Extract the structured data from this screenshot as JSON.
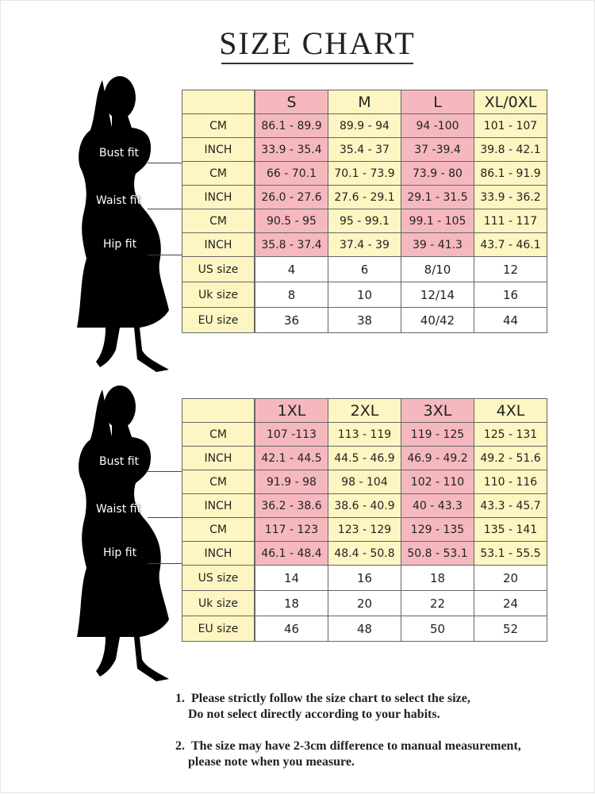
{
  "title": "SIZE CHART",
  "tables": [
    {
      "columns": [
        "S",
        "M",
        "L",
        "XL/0XL"
      ],
      "measures": [
        "Bust fit",
        "Waist fit",
        "Hip fit"
      ],
      "rows": [
        {
          "label": "CM",
          "cells": [
            "86.1 - 89.9",
            "89.9 - 94",
            "94 -100",
            "101 - 107"
          ]
        },
        {
          "label": "INCH",
          "cells": [
            "33.9 - 35.4",
            "35.4 - 37",
            "37 -39.4",
            "39.8 - 42.1"
          ]
        },
        {
          "label": "CM",
          "cells": [
            "66 - 70.1",
            "70.1 - 73.9",
            "73.9 - 80",
            "86.1 - 91.9"
          ]
        },
        {
          "label": "INCH",
          "cells": [
            "26.0 - 27.6",
            "27.6 - 29.1",
            "29.1 - 31.5",
            "33.9 - 36.2"
          ]
        },
        {
          "label": "CM",
          "cells": [
            "90.5 - 95",
            "95 - 99.1",
            "99.1 - 105",
            "111 - 117"
          ]
        },
        {
          "label": "INCH",
          "cells": [
            "35.8 - 37.4",
            "37.4 - 39",
            "39 - 41.3",
            "43.7 - 46.1"
          ]
        },
        {
          "label": "US size",
          "cells": [
            "4",
            "6",
            "8/10",
            "12"
          ]
        },
        {
          "label": "Uk size",
          "cells": [
            "8",
            "10",
            "12/14",
            "16"
          ]
        },
        {
          "label": "EU size",
          "cells": [
            "36",
            "38",
            "40/42",
            "44"
          ]
        }
      ]
    },
    {
      "columns": [
        "1XL",
        "2XL",
        "3XL",
        "4XL"
      ],
      "measures": [
        "Bust fit",
        "Waist fit",
        "Hip fit"
      ],
      "rows": [
        {
          "label": "CM",
          "cells": [
            "107 -113",
            "113 - 119",
            "119 - 125",
            "125 - 131"
          ]
        },
        {
          "label": "INCH",
          "cells": [
            "42.1 - 44.5",
            "44.5 - 46.9",
            "46.9 - 49.2",
            "49.2 - 51.6"
          ]
        },
        {
          "label": "CM",
          "cells": [
            "91.9 - 98",
            "98 - 104",
            "102 - 110",
            "110 - 116"
          ]
        },
        {
          "label": "INCH",
          "cells": [
            "36.2 - 38.6",
            "38.6 - 40.9",
            "40 - 43.3",
            "43.3 - 45.7"
          ]
        },
        {
          "label": "CM",
          "cells": [
            "117 - 123",
            "123 - 129",
            "129 - 135",
            "135 - 141"
          ]
        },
        {
          "label": "INCH",
          "cells": [
            "46.1 - 48.4",
            "48.4 - 50.8",
            "50.8 - 53.1",
            "53.1 - 55.5"
          ]
        },
        {
          "label": "US size",
          "cells": [
            "14",
            "16",
            "18",
            "20"
          ]
        },
        {
          "label": "Uk size",
          "cells": [
            "18",
            "20",
            "22",
            "24"
          ]
        },
        {
          "label": "EU size",
          "cells": [
            "46",
            "48",
            "50",
            "52"
          ]
        }
      ]
    }
  ],
  "notes": [
    {
      "number": "1.",
      "lines": [
        "Please strictly follow the size chart to select the size,",
        "Do not select directly according to your habits."
      ]
    },
    {
      "number": "2.",
      "lines": [
        "The size may have 2-3cm difference  to manual measurement,",
        "please note when you measure."
      ]
    }
  ]
}
